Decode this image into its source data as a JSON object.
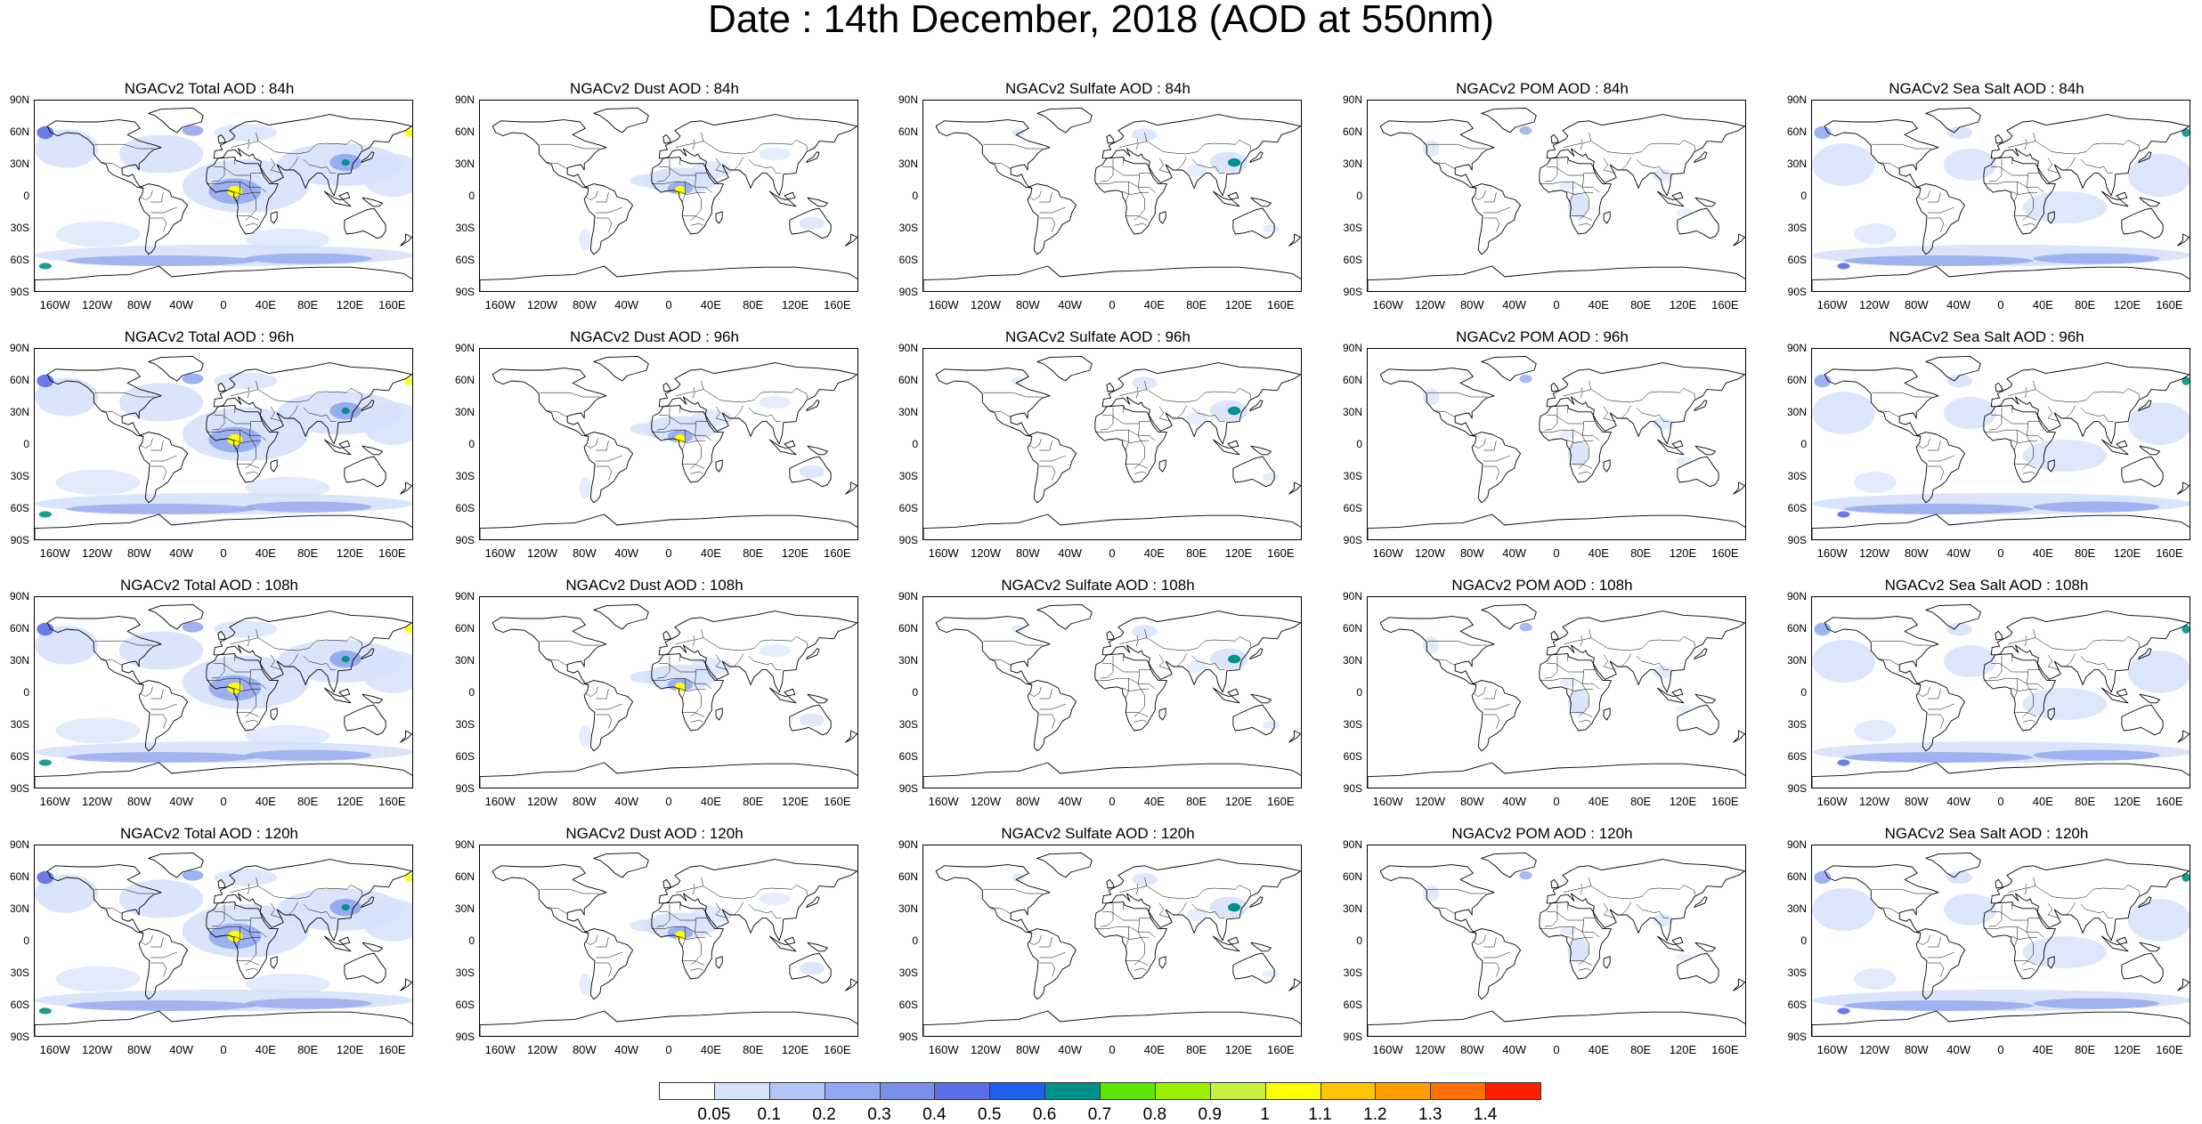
{
  "title": "Date : 14th December, 2018 (AOD at 550nm)",
  "lat_ticks": [
    "90N",
    "60N",
    "30N",
    "0",
    "30S",
    "60S",
    "90S"
  ],
  "lon_ticks": [
    "160W",
    "120W",
    "80W",
    "40W",
    "0",
    "40E",
    "80E",
    "120E",
    "160E"
  ],
  "panels": [
    {
      "title": "NGACv2 Total AOD : 84h",
      "species": "total"
    },
    {
      "title": "NGACv2 Dust AOD : 84h",
      "species": "dust"
    },
    {
      "title": "NGACv2 Sulfate AOD : 84h",
      "species": "sulfate"
    },
    {
      "title": "NGACv2 POM AOD : 84h",
      "species": "pom"
    },
    {
      "title": "NGACv2 Sea Salt AOD : 84h",
      "species": "seasalt"
    },
    {
      "title": "NGACv2 Total AOD : 96h",
      "species": "total"
    },
    {
      "title": "NGACv2 Dust AOD : 96h",
      "species": "dust"
    },
    {
      "title": "NGACv2 Sulfate AOD : 96h",
      "species": "sulfate"
    },
    {
      "title": "NGACv2 POM AOD : 96h",
      "species": "pom"
    },
    {
      "title": "NGACv2 Sea Salt AOD : 96h",
      "species": "seasalt"
    },
    {
      "title": "NGACv2 Total AOD : 108h",
      "species": "total"
    },
    {
      "title": "NGACv2 Dust AOD : 108h",
      "species": "dust"
    },
    {
      "title": "NGACv2 Sulfate AOD : 108h",
      "species": "sulfate"
    },
    {
      "title": "NGACv2 POM AOD : 108h",
      "species": "pom"
    },
    {
      "title": "NGACv2 Sea Salt AOD : 108h",
      "species": "seasalt"
    },
    {
      "title": "NGACv2 Total AOD : 120h",
      "species": "total"
    },
    {
      "title": "NGACv2 Dust AOD : 120h",
      "species": "dust"
    },
    {
      "title": "NGACv2 Sulfate AOD : 120h",
      "species": "sulfate"
    },
    {
      "title": "NGACv2 POM AOD : 120h",
      "species": "pom"
    },
    {
      "title": "NGACv2 Sea Salt  AOD : 120h",
      "species": "seasalt"
    }
  ],
  "colorbar": {
    "labels": [
      "0.05",
      "0.1",
      "0.2",
      "0.3",
      "0.4",
      "0.5",
      "0.6",
      "0.7",
      "0.8",
      "0.9",
      "1",
      "1.1",
      "1.2",
      "1.3",
      "1.4"
    ],
    "colors": [
      "#ffffff",
      "#d6e2fb",
      "#b3c6f5",
      "#93a9ef",
      "#7b8ee9",
      "#5c6ee3",
      "#1f5ff0",
      "#00928a",
      "#5ee600",
      "#9cf000",
      "#c8f040",
      "#ffff00",
      "#ffc400",
      "#ff9c00",
      "#ff7000",
      "#ff2000"
    ]
  },
  "map_colors": {
    "land_line": "#000000",
    "plume_light": "#d6e2fb",
    "plume_mid": "#93a9ef",
    "plume_dark": "#5c6ee3",
    "hot": "#ffff00",
    "teal": "#00928a"
  }
}
